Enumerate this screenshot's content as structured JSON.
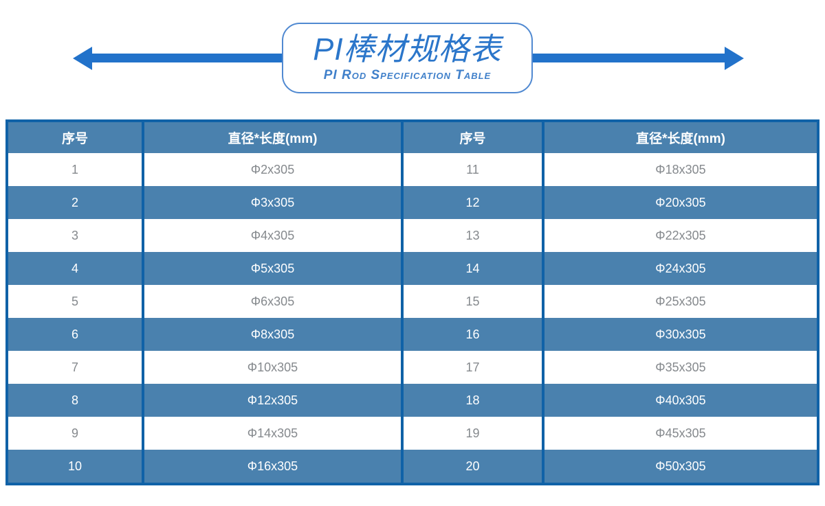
{
  "banner": {
    "title_cn": "PI棒材规格表",
    "title_en": "PI Rod Specification Table"
  },
  "table": {
    "columns": [
      "序号",
      "直径*长度(mm)",
      "序号",
      "直径*长度(mm)"
    ],
    "rows": [
      {
        "no_left": "1",
        "spec_left": "Φ2x305",
        "no_right": "11",
        "spec_right": "Φ18x305"
      },
      {
        "no_left": "2",
        "spec_left": "Φ3x305",
        "no_right": "12",
        "spec_right": "Φ20x305"
      },
      {
        "no_left": "3",
        "spec_left": "Φ4x305",
        "no_right": "13",
        "spec_right": "Φ22x305"
      },
      {
        "no_left": "4",
        "spec_left": "Φ5x305",
        "no_right": "14",
        "spec_right": "Φ24x305"
      },
      {
        "no_left": "5",
        "spec_left": "Φ6x305",
        "no_right": "15",
        "spec_right": "Φ25x305"
      },
      {
        "no_left": "6",
        "spec_left": "Φ8x305",
        "no_right": "16",
        "spec_right": "Φ30x305"
      },
      {
        "no_left": "7",
        "spec_left": "Φ10x305",
        "no_right": "17",
        "spec_right": "Φ35x305"
      },
      {
        "no_left": "8",
        "spec_left": "Φ12x305",
        "no_right": "18",
        "spec_right": "Φ40x305"
      },
      {
        "no_left": "9",
        "spec_left": "Φ14x305",
        "no_right": "19",
        "spec_right": "Φ45x305"
      },
      {
        "no_left": "10",
        "spec_left": "Φ16x305",
        "no_right": "20",
        "spec_right": "Φ50x305"
      }
    ]
  },
  "colors": {
    "accent_arrow_blue": "#2272CA",
    "table_fill_blue": "#4A81AE",
    "table_border_blue": "#1062A7",
    "title_text_blue": "#2B76CA"
  }
}
